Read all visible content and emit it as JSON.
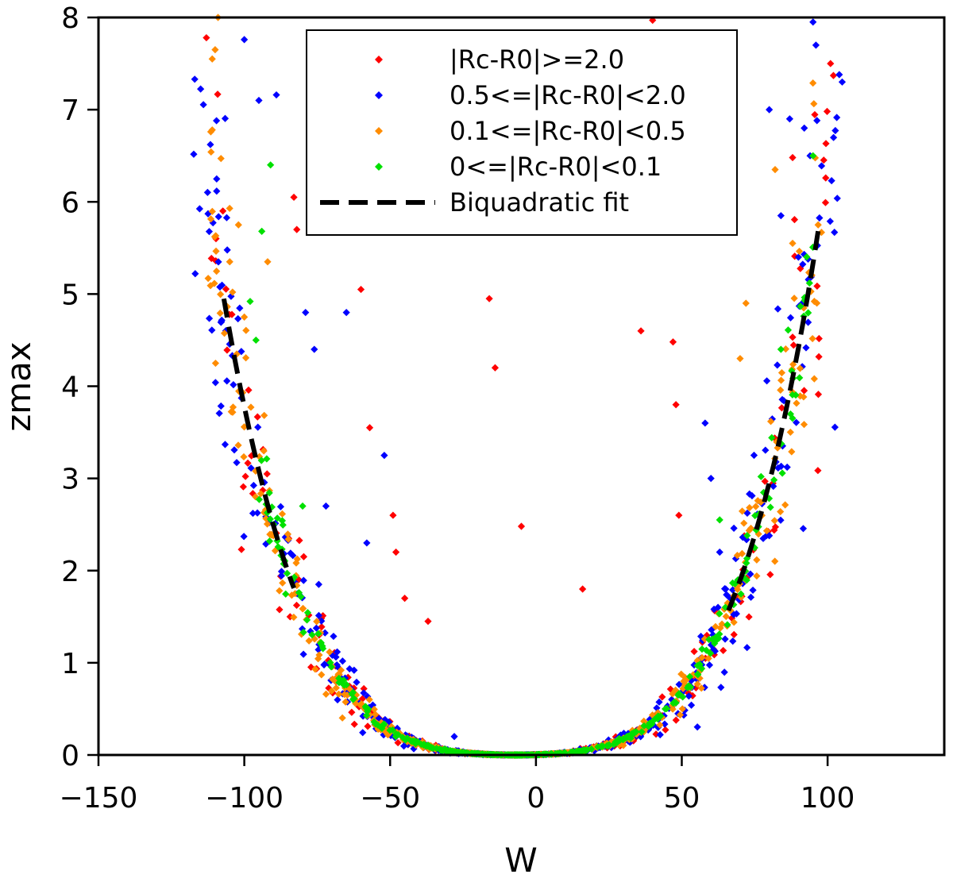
{
  "chart_data": {
    "type": "scatter",
    "title": "",
    "xlabel": "W",
    "ylabel": "zmax",
    "xlim": [
      -150,
      140
    ],
    "ylim": [
      0,
      8
    ],
    "x_ticks": [
      -150,
      -100,
      -50,
      0,
      50,
      100
    ],
    "y_ticks": [
      0,
      1,
      2,
      3,
      4,
      5,
      6,
      7,
      8
    ],
    "x_tick_labels": [
      "−150",
      "−100",
      "−50",
      "0",
      "50",
      "100"
    ],
    "y_tick_labels": [
      "0",
      "1",
      "2",
      "3",
      "4",
      "5",
      "6",
      "7",
      "8"
    ],
    "grid": false,
    "legend_position": "top-center",
    "marker": "diamond",
    "vertex_w": -7,
    "series": [
      {
        "name": "|Rc-R0|>=2.0",
        "color": "#ff0000",
        "envelope": {
          "w_min": -112,
          "w_max": 100,
          "count": 260,
          "scatter": 0.22
        },
        "outliers": [
          [
            -16,
            4.95
          ],
          [
            -14,
            4.2
          ],
          [
            -5,
            2.48
          ],
          [
            16,
            1.8
          ],
          [
            -60,
            5.05
          ],
          [
            -57,
            3.55
          ],
          [
            -49,
            2.6
          ],
          [
            -48,
            2.2
          ],
          [
            -45,
            1.7
          ],
          [
            -37,
            1.45
          ],
          [
            36,
            4.6
          ],
          [
            47,
            4.48
          ],
          [
            48,
            3.8
          ],
          [
            49,
            2.6
          ],
          [
            40,
            7.97
          ],
          [
            -83,
            6.05
          ],
          [
            -82,
            5.7
          ],
          [
            -113,
            7.78
          ],
          [
            97,
            4.32
          ],
          [
            101,
            7.5
          ],
          [
            102,
            7.37
          ],
          [
            88,
            6.48
          ]
        ]
      },
      {
        "name": "0.5<=|Rc-R0|<2.0",
        "color": "#0000ff",
        "envelope": {
          "w_min": -118,
          "w_max": 105,
          "count": 520,
          "scatter": 0.2
        },
        "outliers": [
          [
            -52,
            3.25
          ],
          [
            -117,
            7.33
          ],
          [
            -100,
            7.76
          ],
          [
            -89,
            7.16
          ],
          [
            -79,
            4.8
          ],
          [
            -76,
            4.4
          ],
          [
            -65,
            4.8
          ],
          [
            -72,
            2.7
          ],
          [
            -58,
            2.3
          ],
          [
            -28,
            0.2
          ],
          [
            58,
            3.6
          ],
          [
            60,
            3.0
          ],
          [
            63,
            2.2
          ],
          [
            87,
            6.9
          ],
          [
            92,
            6.8
          ],
          [
            94,
            6.5
          ],
          [
            96,
            7.7
          ],
          [
            95,
            7.95
          ],
          [
            104,
            7.38
          ],
          [
            105,
            7.3
          ],
          [
            84,
            5.85
          ],
          [
            80,
            7.0
          ],
          [
            90,
            5.4
          ],
          [
            -95,
            7.1
          ]
        ]
      },
      {
        "name": "0.1<=|Rc-R0|<0.5",
        "color": "#ff8c00",
        "envelope": {
          "w_min": -113,
          "w_max": 98,
          "count": 480,
          "scatter": 0.14
        },
        "outliers": [
          [
            -111,
            7.55
          ],
          [
            -110,
            7.65
          ],
          [
            -111,
            6.78
          ],
          [
            -108,
            6.47
          ],
          [
            -105,
            5.35
          ],
          [
            -102,
            5.75
          ],
          [
            -100,
            4.75
          ],
          [
            -92,
            5.35
          ],
          [
            88,
            5.55
          ],
          [
            82,
            6.35
          ],
          [
            72,
            4.9
          ],
          [
            70,
            4.3
          ],
          [
            -109,
            8.0
          ]
        ]
      },
      {
        "name": "0<=|Rc-R0|<0.1",
        "color": "#00e000",
        "envelope": {
          "w_min": -95,
          "w_max": 95,
          "count": 360,
          "scatter": 0.07
        },
        "outliers": [
          [
            -91,
            6.4
          ],
          [
            -94,
            5.68
          ],
          [
            -96,
            4.5
          ],
          [
            -98,
            4.92
          ],
          [
            95,
            6.5
          ],
          [
            84,
            4.4
          ],
          [
            63,
            2.55
          ],
          [
            -80,
            2.7
          ]
        ]
      }
    ],
    "fit": {
      "name": "Biquadratic fit",
      "style": "dashed",
      "color": "#000000",
      "segments": [
        {
          "w_from": -107,
          "w_to": -83
        },
        {
          "w_from": 66,
          "w_to": 97
        }
      ]
    }
  }
}
